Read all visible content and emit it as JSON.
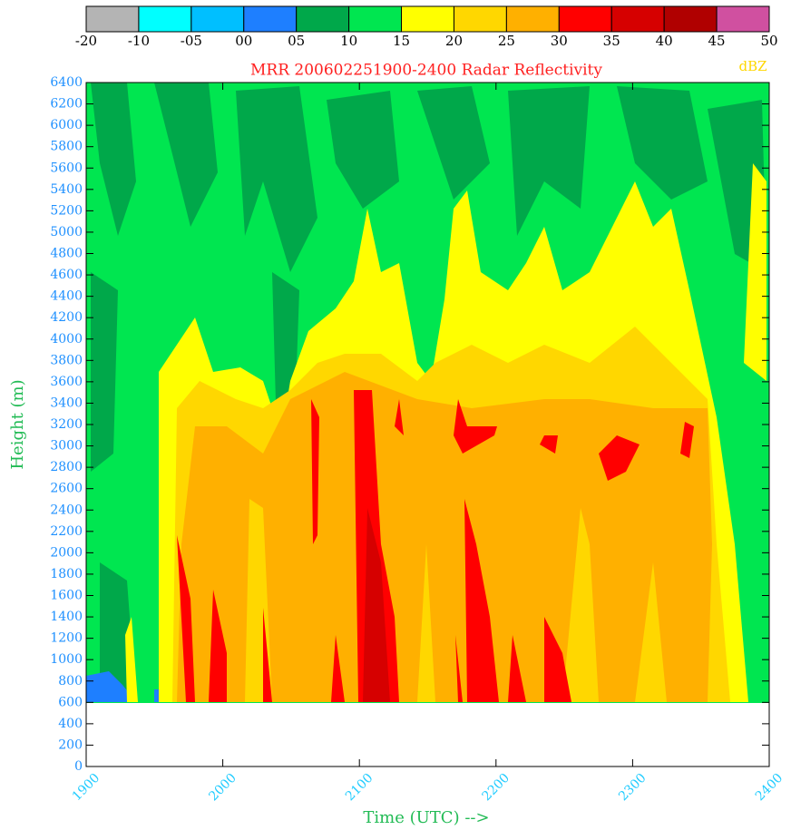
{
  "chart_data": {
    "type": "contour",
    "title": "MRR 200602251900-2400 Radar Reflectivity",
    "colorbar_label": "dBZ",
    "xlabel": "Time (UTC) -->",
    "ylabel": "Height (m)",
    "levels": [
      -20,
      -10,
      {
        "value": -5,
        "label": "-05"
      },
      {
        "value": 0,
        "label": "00"
      },
      {
        "value": 5,
        "label": "05"
      },
      10,
      15,
      20,
      25,
      30,
      35,
      40,
      45,
      50
    ],
    "colors": [
      "#b4b4b4",
      "#00ffff",
      "#00bfff",
      "#1e7fff",
      "#00a84a",
      "#00e650",
      "#ffff00",
      "#ffd700",
      "#ffb000",
      "#ff0000",
      "#d60000",
      "#b00000",
      "#d050a0"
    ],
    "xlim": [
      1900,
      2400
    ],
    "xticks": [
      1900,
      2000,
      2100,
      2200,
      2300,
      2400
    ],
    "ylim": [
      0,
      6400
    ],
    "yticks": [
      0,
      200,
      400,
      600,
      800,
      1000,
      1200,
      1400,
      1600,
      1800,
      2000,
      2200,
      2400,
      2600,
      2800,
      3000,
      3200,
      3400,
      3600,
      3800,
      4000,
      4200,
      4400,
      4600,
      4800,
      5000,
      5200,
      5400,
      5600,
      5800,
      6000,
      6200,
      6400
    ]
  }
}
